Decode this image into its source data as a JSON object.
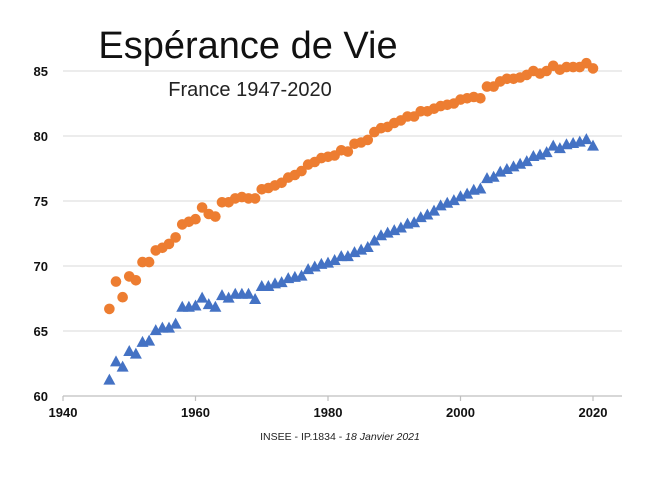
{
  "chart_data": {
    "type": "scatter",
    "title": "Espérance de Vie",
    "subtitle": "France 1947-2020",
    "source": "INSEE  -  IP.1834  -  ",
    "source_date": "18 Janvier 2021",
    "xlabel": "",
    "ylabel": "",
    "xlim": [
      1940,
      2025
    ],
    "ylim": [
      60,
      88
    ],
    "xticks": [
      "1940",
      "1960",
      "1980",
      "2000",
      "2020"
    ],
    "yticks": [
      "60",
      "65",
      "70",
      "75",
      "80",
      "85"
    ],
    "grid": "horizontal",
    "colors": {
      "women": "#ED7D31",
      "men": "#4472C4",
      "grid": "#D9D9D9",
      "axis": "#BFBFBF"
    },
    "series": [
      {
        "marker": "circle",
        "color": "#ED7D31",
        "x": [
          1947,
          1948,
          1949,
          1950,
          1951,
          1952,
          1953,
          1954,
          1955,
          1956,
          1957,
          1958,
          1959,
          1960,
          1961,
          1962,
          1963,
          1964,
          1965,
          1966,
          1967,
          1968,
          1969,
          1970,
          1971,
          1972,
          1973,
          1974,
          1975,
          1976,
          1977,
          1978,
          1979,
          1980,
          1981,
          1982,
          1983,
          1984,
          1985,
          1986,
          1987,
          1988,
          1989,
          1990,
          1991,
          1992,
          1993,
          1994,
          1995,
          1996,
          1997,
          1998,
          1999,
          2000,
          2001,
          2002,
          2003,
          2004,
          2005,
          2006,
          2007,
          2008,
          2009,
          2010,
          2011,
          2012,
          2013,
          2014,
          2015,
          2016,
          2017,
          2018,
          2019,
          2020
        ],
        "values": [
          66.7,
          68.8,
          67.6,
          69.2,
          68.9,
          70.3,
          70.3,
          71.2,
          71.4,
          71.7,
          72.2,
          73.2,
          73.4,
          73.6,
          74.5,
          74.0,
          73.8,
          74.9,
          74.9,
          75.2,
          75.3,
          75.2,
          75.2,
          75.9,
          76.0,
          76.2,
          76.4,
          76.8,
          77.0,
          77.3,
          77.8,
          78.0,
          78.3,
          78.4,
          78.5,
          78.9,
          78.8,
          79.4,
          79.5,
          79.7,
          80.3,
          80.6,
          80.7,
          81.0,
          81.2,
          81.5,
          81.5,
          81.9,
          81.9,
          82.1,
          82.3,
          82.4,
          82.5,
          82.8,
          82.9,
          83.0,
          82.9,
          83.8,
          83.8,
          84.2,
          84.4,
          84.4,
          84.5,
          84.7,
          85.0,
          84.8,
          85.0,
          85.4,
          85.1,
          85.3,
          85.3,
          85.3,
          85.6,
          85.2
        ]
      },
      {
        "marker": "triangle",
        "color": "#4472C4",
        "x": [
          1947,
          1948,
          1949,
          1950,
          1951,
          1952,
          1953,
          1954,
          1955,
          1956,
          1957,
          1958,
          1959,
          1960,
          1961,
          1962,
          1963,
          1964,
          1965,
          1966,
          1967,
          1968,
          1969,
          1970,
          1971,
          1972,
          1973,
          1974,
          1975,
          1976,
          1977,
          1978,
          1979,
          1980,
          1981,
          1982,
          1983,
          1984,
          1985,
          1986,
          1987,
          1988,
          1989,
          1990,
          1991,
          1992,
          1993,
          1994,
          1995,
          1996,
          1997,
          1998,
          1999,
          2000,
          2001,
          2002,
          2003,
          2004,
          2005,
          2006,
          2007,
          2008,
          2009,
          2010,
          2011,
          2012,
          2013,
          2014,
          2015,
          2016,
          2017,
          2018,
          2019,
          2020
        ],
        "values": [
          61.2,
          62.6,
          62.2,
          63.4,
          63.2,
          64.1,
          64.2,
          65.0,
          65.2,
          65.2,
          65.5,
          66.8,
          66.8,
          66.9,
          67.5,
          67.0,
          66.8,
          67.7,
          67.5,
          67.8,
          67.8,
          67.8,
          67.4,
          68.4,
          68.4,
          68.6,
          68.7,
          69.0,
          69.1,
          69.2,
          69.7,
          69.9,
          70.1,
          70.2,
          70.4,
          70.7,
          70.7,
          71.0,
          71.2,
          71.4,
          71.9,
          72.3,
          72.5,
          72.7,
          72.9,
          73.2,
          73.3,
          73.7,
          73.9,
          74.2,
          74.6,
          74.8,
          75.0,
          75.3,
          75.5,
          75.8,
          75.9,
          76.7,
          76.8,
          77.2,
          77.4,
          77.6,
          77.8,
          78.0,
          78.4,
          78.5,
          78.7,
          79.2,
          79.0,
          79.3,
          79.4,
          79.5,
          79.7,
          79.2
        ]
      }
    ]
  }
}
